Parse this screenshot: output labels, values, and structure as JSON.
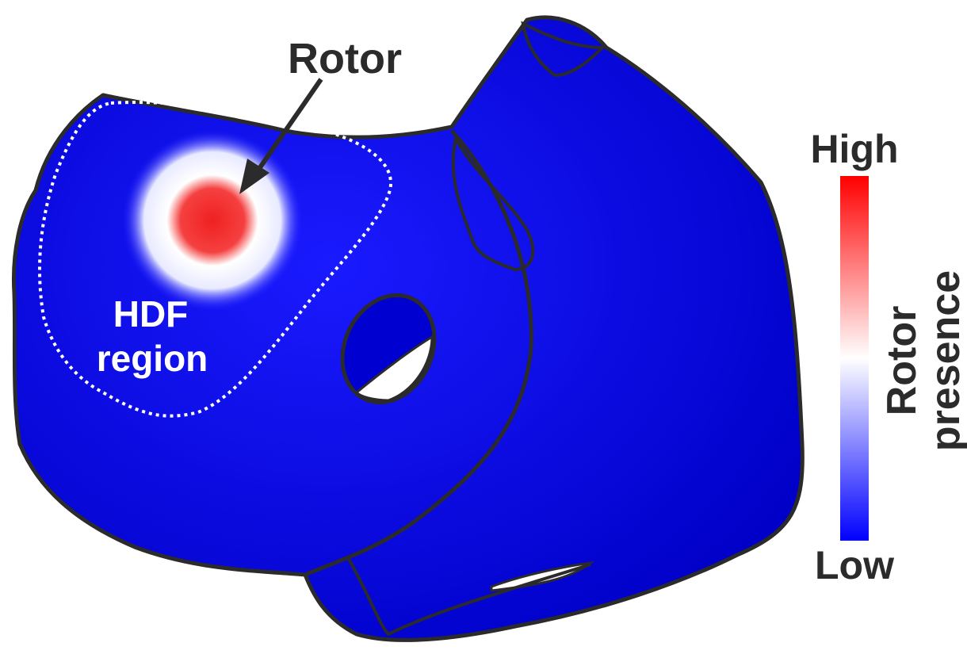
{
  "annotations": {
    "rotor": "Rotor",
    "hdf_region": [
      "HDF",
      "region"
    ]
  },
  "colorbar": {
    "high": "High",
    "low": "Low",
    "title": [
      "Rotor",
      "presence"
    ]
  }
}
